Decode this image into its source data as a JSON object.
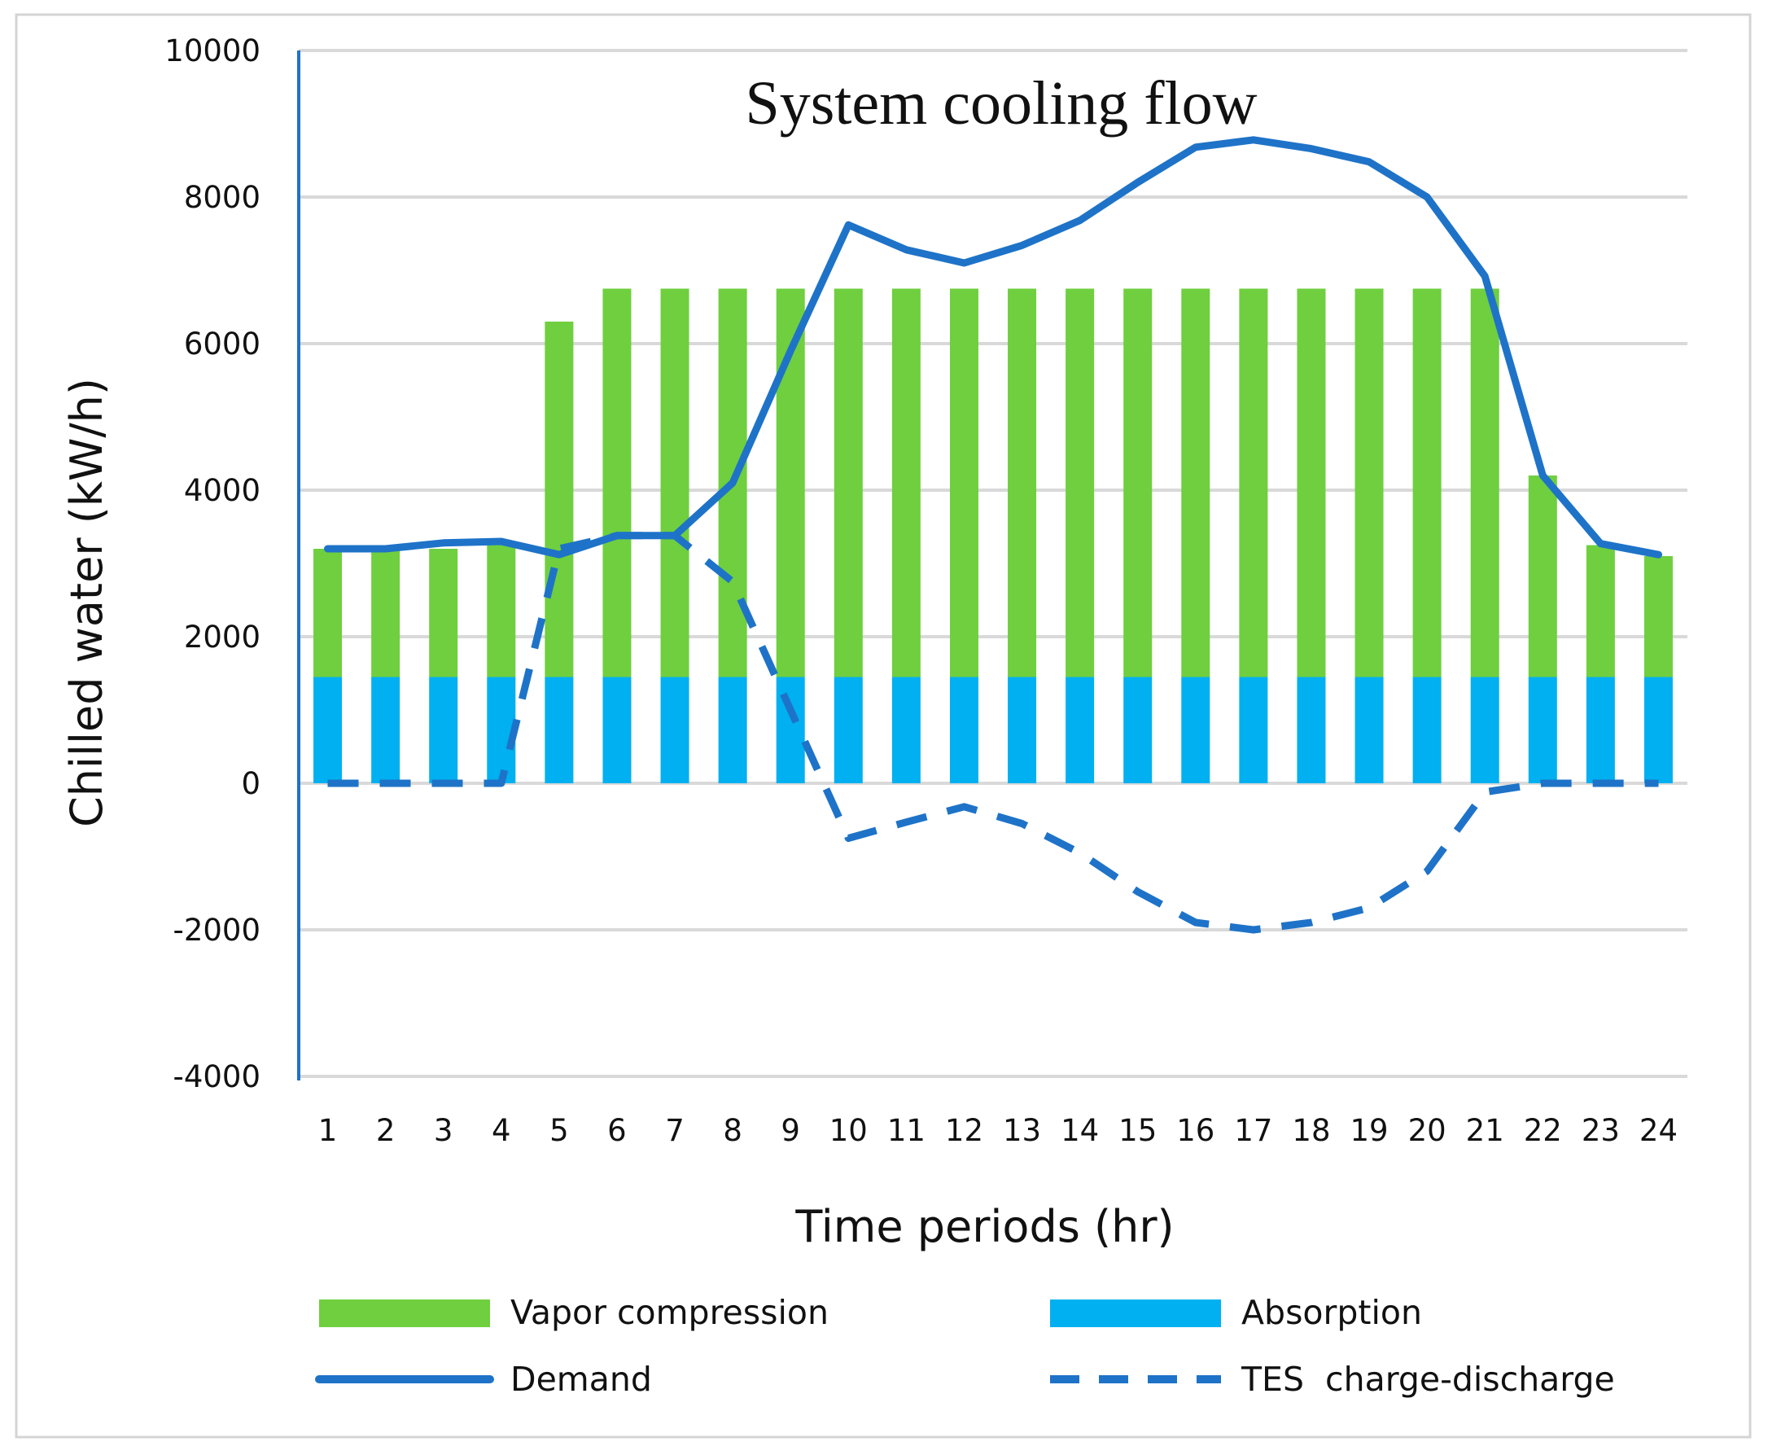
{
  "chart_data": {
    "type": "bar",
    "title": "System cooling flow",
    "xlabel": "Time periods (hr)",
    "ylabel": "Chilled water (kW/h)",
    "ylim": [
      -4000,
      10000
    ],
    "yticks": [
      "10000",
      "8000",
      "6000",
      "4000",
      "2000",
      "0",
      "-2000",
      "-4000"
    ],
    "ytick_values": [
      10000,
      8000,
      6000,
      4000,
      2000,
      0,
      -2000,
      -4000
    ],
    "grid": true,
    "legend_position": "bottom",
    "stacked": true,
    "categories": [
      "1",
      "2",
      "3",
      "4",
      "5",
      "6",
      "7",
      "8",
      "9",
      "10",
      "11",
      "12",
      "13",
      "14",
      "15",
      "16",
      "17",
      "18",
      "19",
      "20",
      "21",
      "22",
      "23",
      "24"
    ],
    "series": [
      {
        "name": "Absorption",
        "kind": "bar",
        "color": "#00b0f0",
        "values": [
          1450,
          1450,
          1450,
          1450,
          1450,
          1450,
          1450,
          1450,
          1450,
          1450,
          1450,
          1450,
          1450,
          1450,
          1450,
          1450,
          1450,
          1450,
          1450,
          1450,
          1450,
          1450,
          1450,
          1450
        ]
      },
      {
        "name": "Vapor compression",
        "kind": "bar",
        "color": "#6fcf3f",
        "values": [
          1750,
          1750,
          1750,
          1800,
          4850,
          5300,
          5300,
          5300,
          5300,
          5300,
          5300,
          5300,
          5300,
          5300,
          5300,
          5300,
          5300,
          5300,
          5300,
          5300,
          5300,
          2750,
          1800,
          1650
        ]
      },
      {
        "name": "Demand",
        "kind": "line",
        "style": "solid",
        "color": "#1e73c8",
        "values": [
          3200,
          3200,
          3280,
          3300,
          3120,
          3380,
          3380,
          4100,
          5900,
          7620,
          7280,
          7100,
          7340,
          7680,
          8200,
          8680,
          8780,
          8660,
          8480,
          8000,
          6920,
          4200,
          3270,
          3120
        ]
      },
      {
        "name": "TES  charge-discharge",
        "kind": "line",
        "style": "dashed",
        "color": "#1e73c8",
        "values": [
          0,
          0,
          0,
          0,
          3200,
          3380,
          3380,
          2750,
          1000,
          -750,
          -530,
          -320,
          -550,
          -950,
          -1480,
          -1900,
          -2000,
          -1900,
          -1700,
          -1200,
          -120,
          0,
          0,
          0
        ]
      }
    ]
  }
}
